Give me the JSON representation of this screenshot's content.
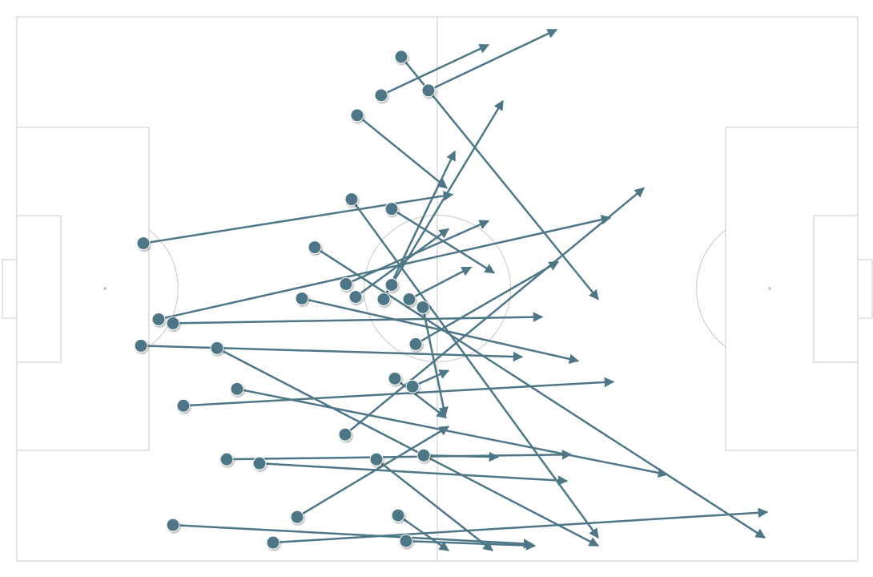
{
  "chart_data": {
    "type": "pass-map",
    "xlim": [
      0,
      105
    ],
    "ylim": [
      0,
      68
    ],
    "color": "#4d7787",
    "x": [
      48.0,
      51.4,
      45.5,
      42.5,
      15.8,
      41.8,
      46.8,
      37.2,
      50.7,
      17.7,
      19.5,
      15.5,
      25.0,
      35.6,
      41.1,
      42.3,
      46.8,
      45.8,
      49.0,
      49.8,
      41.0,
      47.2,
      49.4,
      27.5,
      30.3,
      26.2,
      44.9,
      50.8,
      20.8,
      35.0,
      19.5,
      32.0,
      47.6,
      48.6
    ],
    "y": [
      5.0,
      9.2,
      9.8,
      12.3,
      28.3,
      22.8,
      24.0,
      28.8,
      36.3,
      37.8,
      38.3,
      41.1,
      41.4,
      35.2,
      33.4,
      35.0,
      33.5,
      35.3,
      35.3,
      40.9,
      52.2,
      45.2,
      46.2,
      46.5,
      55.8,
      55.3,
      55.3,
      54.8,
      48.6,
      62.5,
      63.5,
      65.7,
      62.3,
      65.5
    ],
    "end_x": [
      72.6,
      67.4,
      58.9,
      53.7,
      54.4,
      72.6,
      59.6,
      93.4,
      53.5,
      74.1,
      65.6,
      63.1,
      72.6,
      70.1,
      58.9,
      53.9,
      60.7,
      54.7,
      56.7,
      67.6,
      78.3,
      53.6,
      53.9,
      81.2,
      68.7,
      69.2,
      59.4,
      60.1,
      74.5,
      53.9,
      64.4,
      93.7,
      53.9,
      64.7
    ],
    "end_y": [
      35.3,
      1.6,
      3.5,
      21.4,
      22.2,
      65.1,
      32.0,
      65.1,
      49.9,
      25.1,
      37.5,
      42.5,
      66.1,
      43.0,
      25.5,
      26.5,
      10.5,
      16.8,
      31.3,
      30.6,
      21.4,
      50.1,
      44.2,
      57.2,
      58.0,
      54.7,
      66.7,
      55.0,
      45.6,
      51.2,
      65.9,
      61.9,
      66.7,
      66.1
    ]
  }
}
